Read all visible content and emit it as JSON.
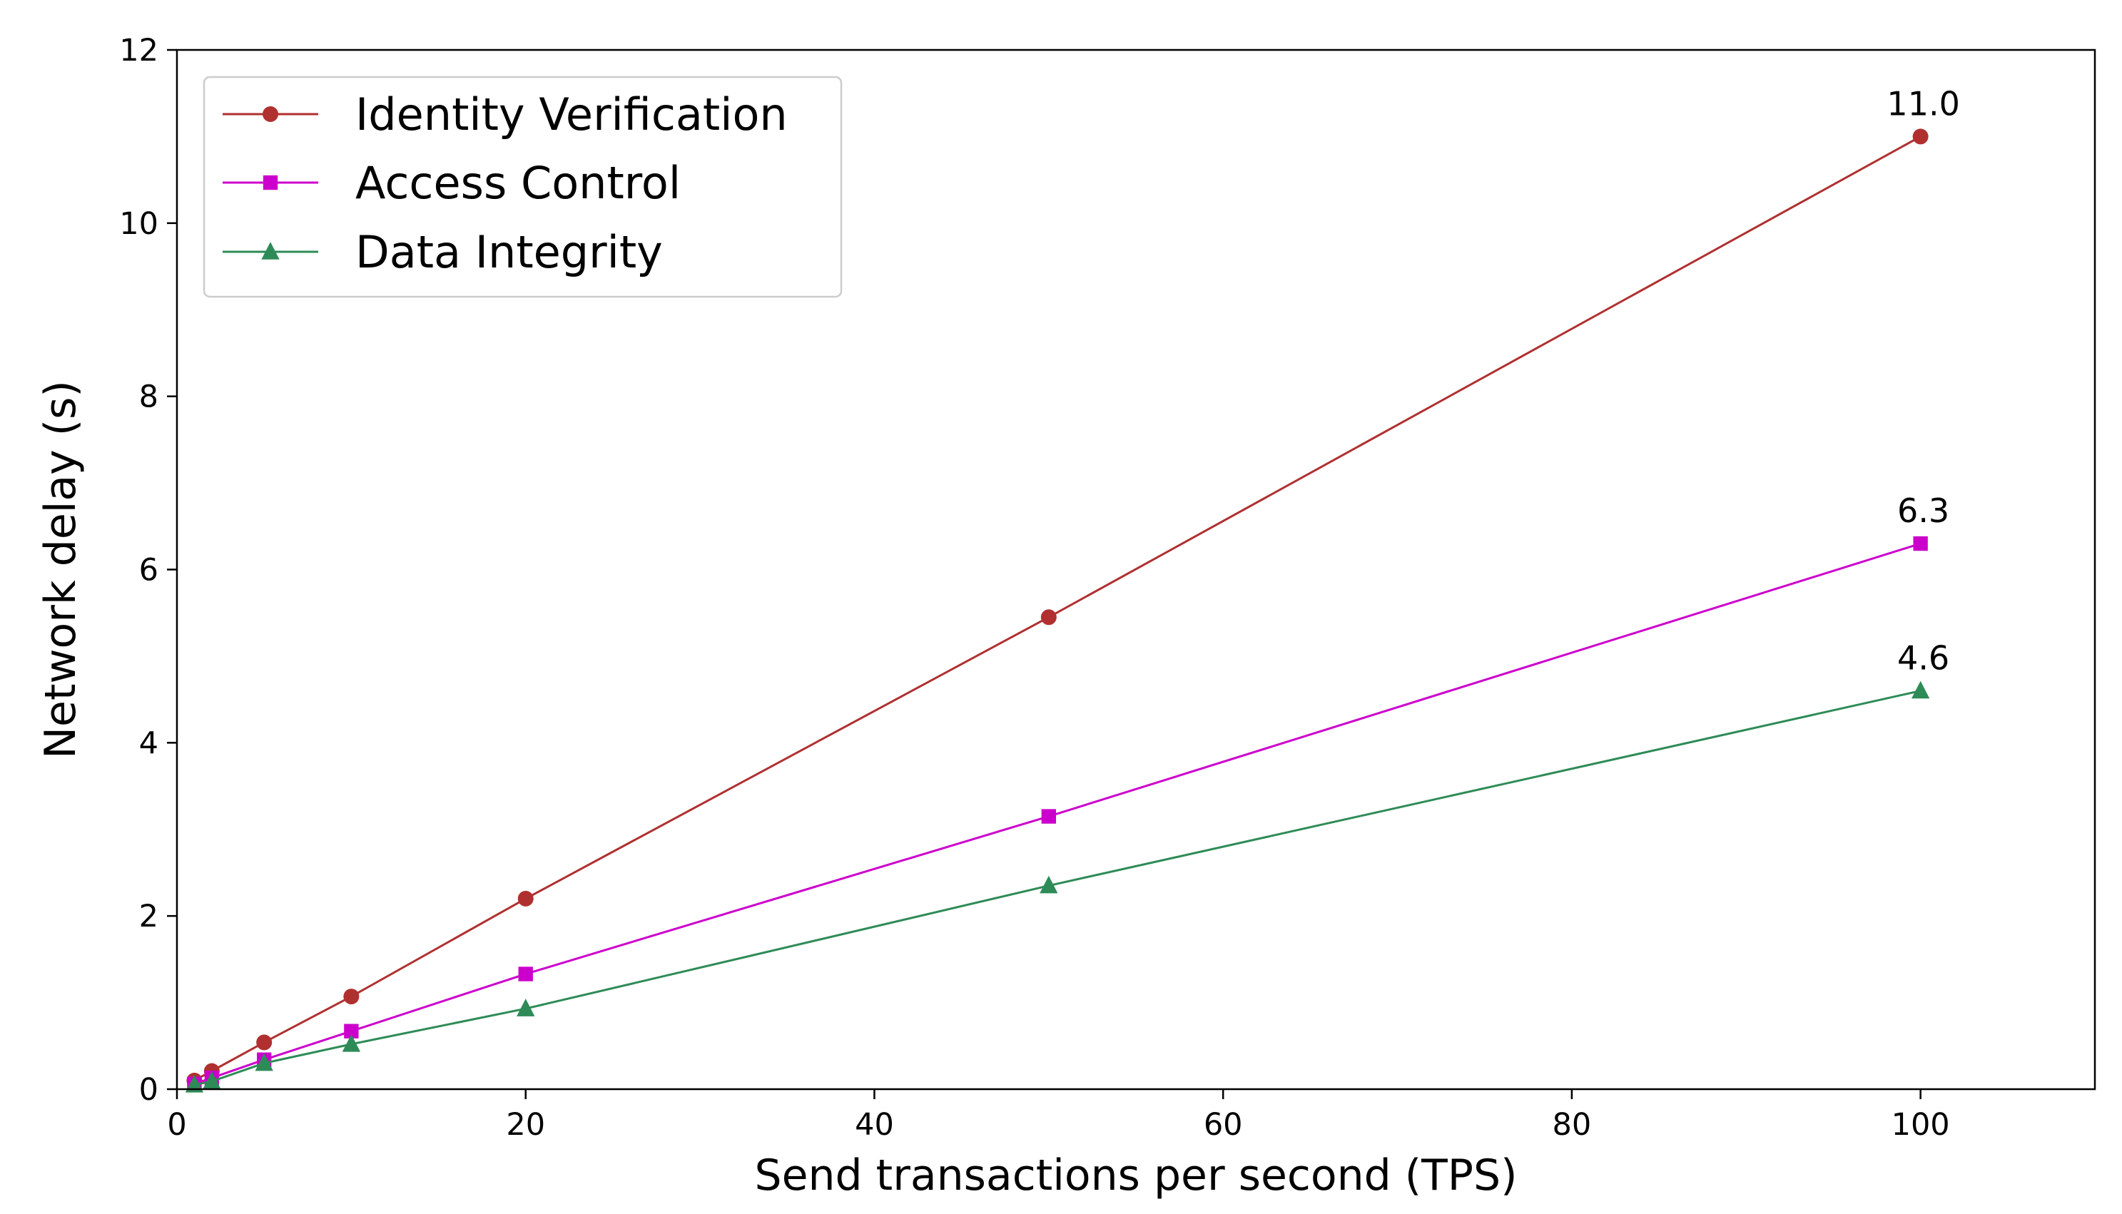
{
  "chart_data": {
    "type": "line",
    "title": "",
    "xlabel": "Send transactions per second (TPS)",
    "ylabel": "Network delay (s)",
    "xlim": [
      0,
      110
    ],
    "ylim": [
      0,
      12
    ],
    "xticks": [
      0,
      20,
      40,
      60,
      80,
      100
    ],
    "yticks": [
      0,
      2,
      4,
      6,
      8,
      10,
      12
    ],
    "x": [
      1,
      2,
      5,
      10,
      20,
      50,
      100
    ],
    "grid": false,
    "legend_position": "top-left",
    "series": [
      {
        "name": "Identity Verification",
        "color": "#b03030",
        "marker": "circle",
        "values": [
          0.1,
          0.21,
          0.54,
          1.07,
          2.2,
          5.45,
          11.0
        ],
        "end_label": "11.0"
      },
      {
        "name": "Access Control",
        "color": "#cc00cc",
        "marker": "square",
        "values": [
          0.06,
          0.13,
          0.34,
          0.67,
          1.33,
          3.15,
          6.3
        ],
        "end_label": "6.3"
      },
      {
        "name": "Data Integrity",
        "color": "#2e8b57",
        "marker": "triangle",
        "values": [
          0.05,
          0.09,
          0.3,
          0.52,
          0.93,
          2.35,
          4.6
        ],
        "end_label": "4.6"
      }
    ]
  }
}
